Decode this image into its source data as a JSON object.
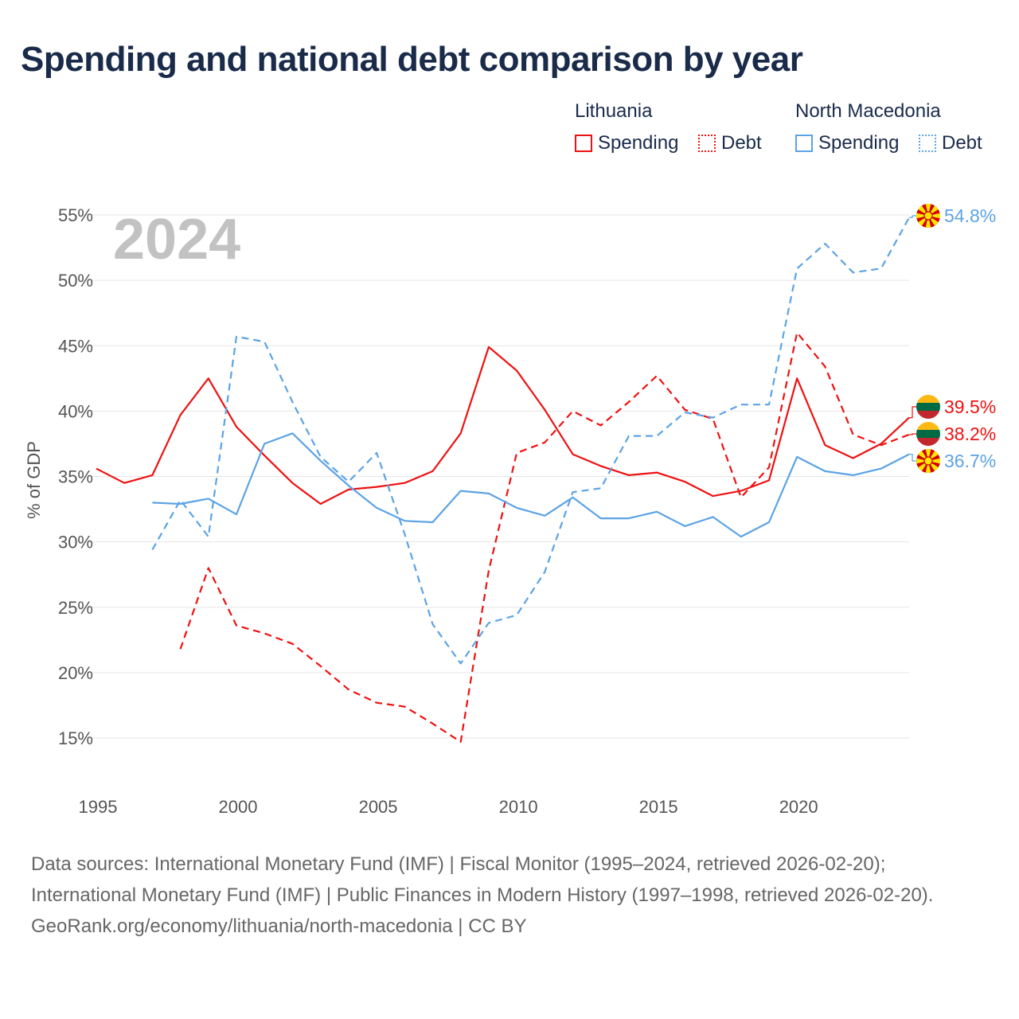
{
  "title": "Spending and national debt comparison by year",
  "legend": {
    "groups": [
      {
        "country": "Lithuania",
        "color": "#ee1111",
        "items": [
          {
            "label": "Spending",
            "style": "solid"
          },
          {
            "label": "Debt",
            "style": "dotted"
          }
        ]
      },
      {
        "country": "North Macedonia",
        "color": "#5ca3e4",
        "items": [
          {
            "label": "Spending",
            "style": "solid"
          },
          {
            "label": "Debt",
            "style": "dotted"
          }
        ]
      }
    ]
  },
  "year_watermark": "2024",
  "end_labels": {
    "nmk_debt": "54.8%",
    "ltu_spending": "39.5%",
    "ltu_debt": "38.2%",
    "nmk_spending": "36.7%"
  },
  "sources": {
    "line1": "Data sources: International Monetary Fund (IMF) | Fiscal Monitor (1995–2024, retrieved 2026-02-20); International Monetary Fund (IMF) | Public Finances in Modern History (1997–1998, retrieved 2026-02-20).",
    "line2": "GeoRank.org/economy/lithuania/north-macedonia | CC BY"
  },
  "chart_data": {
    "type": "line",
    "title": "Spending and national debt comparison by year",
    "xlabel": "",
    "ylabel": "% of GDP",
    "xlim": [
      1995,
      2024
    ],
    "ylim": [
      13,
      56
    ],
    "x_ticks": [
      1995,
      2000,
      2005,
      2010,
      2015,
      2020
    ],
    "y_ticks": [
      15,
      20,
      25,
      30,
      35,
      40,
      45,
      50,
      55
    ],
    "y_tick_suffix": "%",
    "grid": true,
    "series": [
      {
        "name": "Lithuania Spending",
        "key": "ltu_spending",
        "color": "#ee1111",
        "dash": "solid",
        "x": [
          1995,
          1996,
          1997,
          1998,
          1999,
          2000,
          2001,
          2002,
          2003,
          2004,
          2005,
          2006,
          2007,
          2008,
          2009,
          2010,
          2011,
          2012,
          2013,
          2014,
          2015,
          2016,
          2017,
          2018,
          2019,
          2020,
          2021,
          2022,
          2023,
          2024
        ],
        "values": [
          35.6,
          34.5,
          35.1,
          39.7,
          42.5,
          38.8,
          36.6,
          34.5,
          32.9,
          34.0,
          34.2,
          34.5,
          35.4,
          38.3,
          44.9,
          43.1,
          40.1,
          36.7,
          35.8,
          35.1,
          35.3,
          34.6,
          33.5,
          33.9,
          34.7,
          42.5,
          37.4,
          36.4,
          37.5,
          39.5
        ]
      },
      {
        "name": "Lithuania Debt",
        "key": "ltu_debt",
        "color": "#ee1111",
        "dash": "dashed",
        "x": [
          1998,
          1999,
          2000,
          2001,
          2002,
          2003,
          2004,
          2005,
          2006,
          2007,
          2008,
          2009,
          2010,
          2011,
          2012,
          2013,
          2014,
          2015,
          2016,
          2017,
          2018,
          2019,
          2020,
          2021,
          2022,
          2023,
          2024
        ],
        "values": [
          21.8,
          28.0,
          23.6,
          23.0,
          22.2,
          20.5,
          18.7,
          17.7,
          17.4,
          16.1,
          14.7,
          27.8,
          36.8,
          37.6,
          40.0,
          38.9,
          40.7,
          42.7,
          40.1,
          39.4,
          33.4,
          35.7,
          46.0,
          43.4,
          38.2,
          37.4,
          38.2
        ]
      },
      {
        "name": "North Macedonia Spending",
        "key": "nmk_spending",
        "color": "#5ca3e4",
        "dash": "solid",
        "x": [
          1997,
          1998,
          1999,
          2000,
          2001,
          2002,
          2003,
          2004,
          2005,
          2006,
          2007,
          2008,
          2009,
          2010,
          2011,
          2012,
          2013,
          2014,
          2015,
          2016,
          2017,
          2018,
          2019,
          2020,
          2021,
          2022,
          2023,
          2024
        ],
        "values": [
          33.0,
          32.9,
          33.3,
          32.1,
          37.5,
          38.3,
          36.2,
          34.3,
          32.6,
          31.6,
          31.5,
          33.9,
          33.7,
          32.6,
          32.0,
          33.4,
          31.8,
          31.8,
          32.3,
          31.2,
          31.9,
          30.4,
          31.5,
          36.5,
          35.4,
          35.1,
          35.6,
          36.7
        ]
      },
      {
        "name": "North Macedonia Debt",
        "key": "nmk_debt",
        "color": "#5ca3e4",
        "dash": "dashed",
        "x": [
          1997,
          1998,
          1999,
          2000,
          2001,
          2002,
          2003,
          2004,
          2005,
          2006,
          2007,
          2008,
          2009,
          2010,
          2011,
          2012,
          2013,
          2014,
          2015,
          2016,
          2017,
          2018,
          2019,
          2020,
          2021,
          2022,
          2023,
          2024
        ],
        "values": [
          29.4,
          33.2,
          30.4,
          45.7,
          45.3,
          40.7,
          36.5,
          34.6,
          36.8,
          30.6,
          23.7,
          20.7,
          23.8,
          24.4,
          27.7,
          33.8,
          34.1,
          38.1,
          38.1,
          39.9,
          39.5,
          40.5,
          40.5,
          50.9,
          52.8,
          50.6,
          50.9,
          54.8
        ]
      }
    ]
  }
}
